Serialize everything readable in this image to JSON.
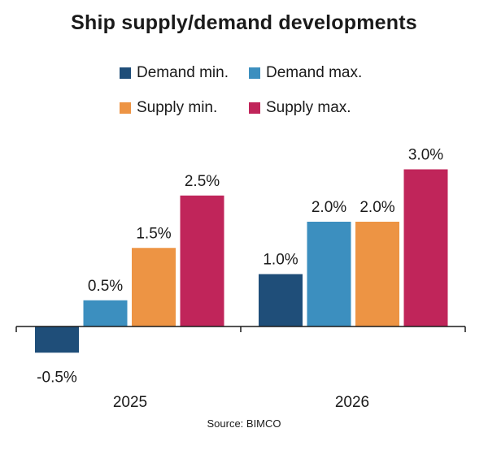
{
  "chart_data": {
    "type": "bar",
    "title": "Ship supply/demand  developments",
    "categories": [
      "2025",
      "2026"
    ],
    "series": [
      {
        "name": "Demand min.",
        "color": "#1f4e79",
        "values": [
          -0.5,
          1.0
        ],
        "labels": [
          "-0.5%",
          "1.0%"
        ]
      },
      {
        "name": "Demand max.",
        "color": "#3c8fbf",
        "values": [
          0.5,
          2.0
        ],
        "labels": [
          "0.5%",
          "2.0%"
        ]
      },
      {
        "name": "Supply min.",
        "color": "#ed9444",
        "values": [
          1.5,
          2.0
        ],
        "labels": [
          "1.5%",
          "2.0%"
        ]
      },
      {
        "name": "Supply max.",
        "color": "#c0255a",
        "values": [
          2.5,
          3.0
        ],
        "labels": [
          "2.5%",
          "3.0%"
        ]
      }
    ],
    "ylim": [
      -0.6,
      3.2
    ],
    "xlabel": "",
    "ylabel": "",
    "grid": false,
    "legend": "top",
    "source": "Source: BIMCO"
  }
}
